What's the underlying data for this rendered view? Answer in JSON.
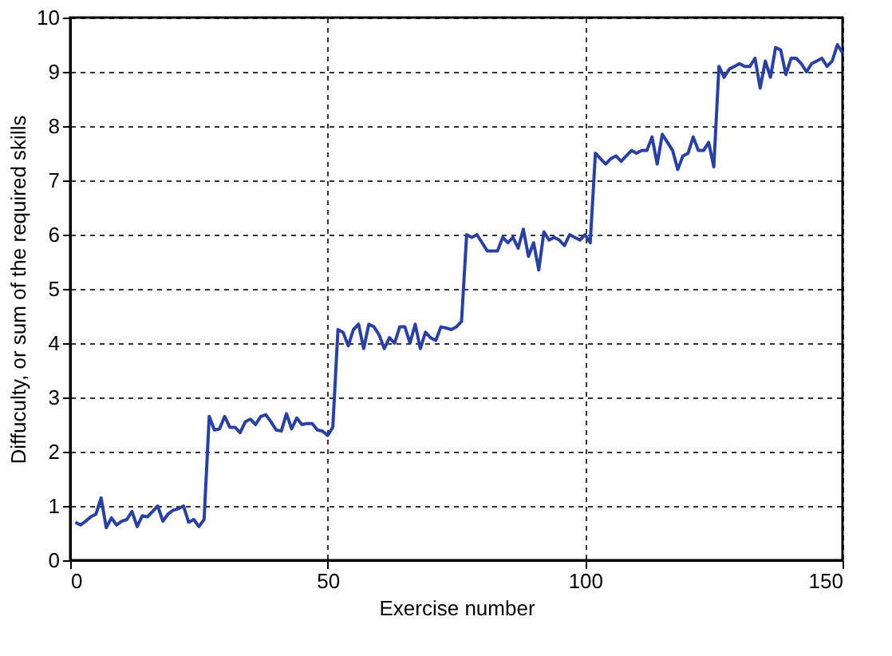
{
  "chart_data": {
    "type": "line",
    "xlabel": "Exercise number",
    "ylabel": "Diffuculty, or sum of the required skills",
    "x": [
      1,
      2,
      3,
      4,
      5,
      6,
      7,
      8,
      9,
      10,
      11,
      12,
      13,
      14,
      15,
      16,
      17,
      18,
      19,
      20,
      21,
      22,
      23,
      24,
      25,
      26,
      27,
      28,
      29,
      30,
      31,
      32,
      33,
      34,
      35,
      36,
      37,
      38,
      39,
      40,
      41,
      42,
      43,
      44,
      45,
      46,
      47,
      48,
      49,
      50,
      51,
      52,
      53,
      54,
      55,
      56,
      57,
      58,
      59,
      60,
      61,
      62,
      63,
      64,
      65,
      66,
      67,
      68,
      69,
      70,
      71,
      72,
      73,
      74,
      75,
      76,
      77,
      78,
      79,
      80,
      81,
      82,
      83,
      84,
      85,
      86,
      87,
      88,
      89,
      90,
      91,
      92,
      93,
      94,
      95,
      96,
      97,
      98,
      99,
      100,
      101,
      102,
      103,
      104,
      105,
      106,
      107,
      108,
      109,
      110,
      111,
      112,
      113,
      114,
      115,
      116,
      117,
      118,
      119,
      120,
      121,
      122,
      123,
      124,
      125,
      126,
      127,
      128,
      129,
      130,
      131,
      132,
      133,
      134,
      135,
      136,
      137,
      138,
      139,
      140,
      141,
      142,
      143,
      144,
      145,
      146,
      147,
      148,
      149,
      150
    ],
    "series": [
      {
        "color": "#2b41a0",
        "values": [
          0.7,
          0.65,
          0.72,
          0.8,
          0.85,
          1.15,
          0.6,
          0.78,
          0.65,
          0.72,
          0.75,
          0.9,
          0.62,
          0.82,
          0.8,
          0.9,
          1.0,
          0.72,
          0.85,
          0.92,
          0.95,
          1.0,
          0.7,
          0.75,
          0.62,
          0.75,
          2.65,
          2.4,
          2.42,
          2.65,
          2.45,
          2.45,
          2.35,
          2.55,
          2.6,
          2.5,
          2.65,
          2.68,
          2.55,
          2.4,
          2.38,
          2.7,
          2.42,
          2.62,
          2.5,
          2.52,
          2.52,
          2.4,
          2.38,
          2.3,
          2.45,
          4.25,
          4.2,
          3.95,
          4.25,
          4.35,
          3.9,
          4.35,
          4.3,
          4.15,
          3.9,
          4.1,
          4.0,
          4.3,
          4.3,
          4.0,
          4.35,
          3.9,
          4.2,
          4.1,
          4.05,
          4.3,
          4.28,
          4.25,
          4.3,
          4.4,
          6.0,
          5.95,
          6.0,
          5.85,
          5.7,
          5.7,
          5.7,
          5.95,
          5.85,
          5.95,
          5.75,
          6.1,
          5.6,
          5.85,
          5.35,
          6.05,
          5.9,
          5.95,
          5.9,
          5.8,
          6.0,
          5.95,
          5.9,
          6.0,
          5.85,
          7.5,
          7.4,
          7.3,
          7.4,
          7.45,
          7.35,
          7.45,
          7.55,
          7.5,
          7.55,
          7.55,
          7.8,
          7.3,
          7.85,
          7.7,
          7.55,
          7.2,
          7.45,
          7.5,
          7.8,
          7.55,
          7.55,
          7.7,
          7.25,
          9.1,
          8.9,
          9.05,
          9.1,
          9.15,
          9.1,
          9.1,
          9.25,
          8.7,
          9.2,
          8.9,
          9.45,
          9.4,
          8.95,
          9.25,
          9.25,
          9.15,
          9.0,
          9.15,
          9.2,
          9.25,
          9.1,
          9.2,
          9.5,
          9.35
        ]
      }
    ],
    "xlim": [
      0,
      150
    ],
    "xticks": [
      0,
      50,
      100,
      150
    ],
    "ylim": [
      0,
      10
    ],
    "yticks": [
      0,
      1,
      2,
      3,
      4,
      5,
      6,
      7,
      8,
      9,
      10
    ],
    "grid": true,
    "line_style": "solid",
    "marker": "none",
    "legend": false
  }
}
